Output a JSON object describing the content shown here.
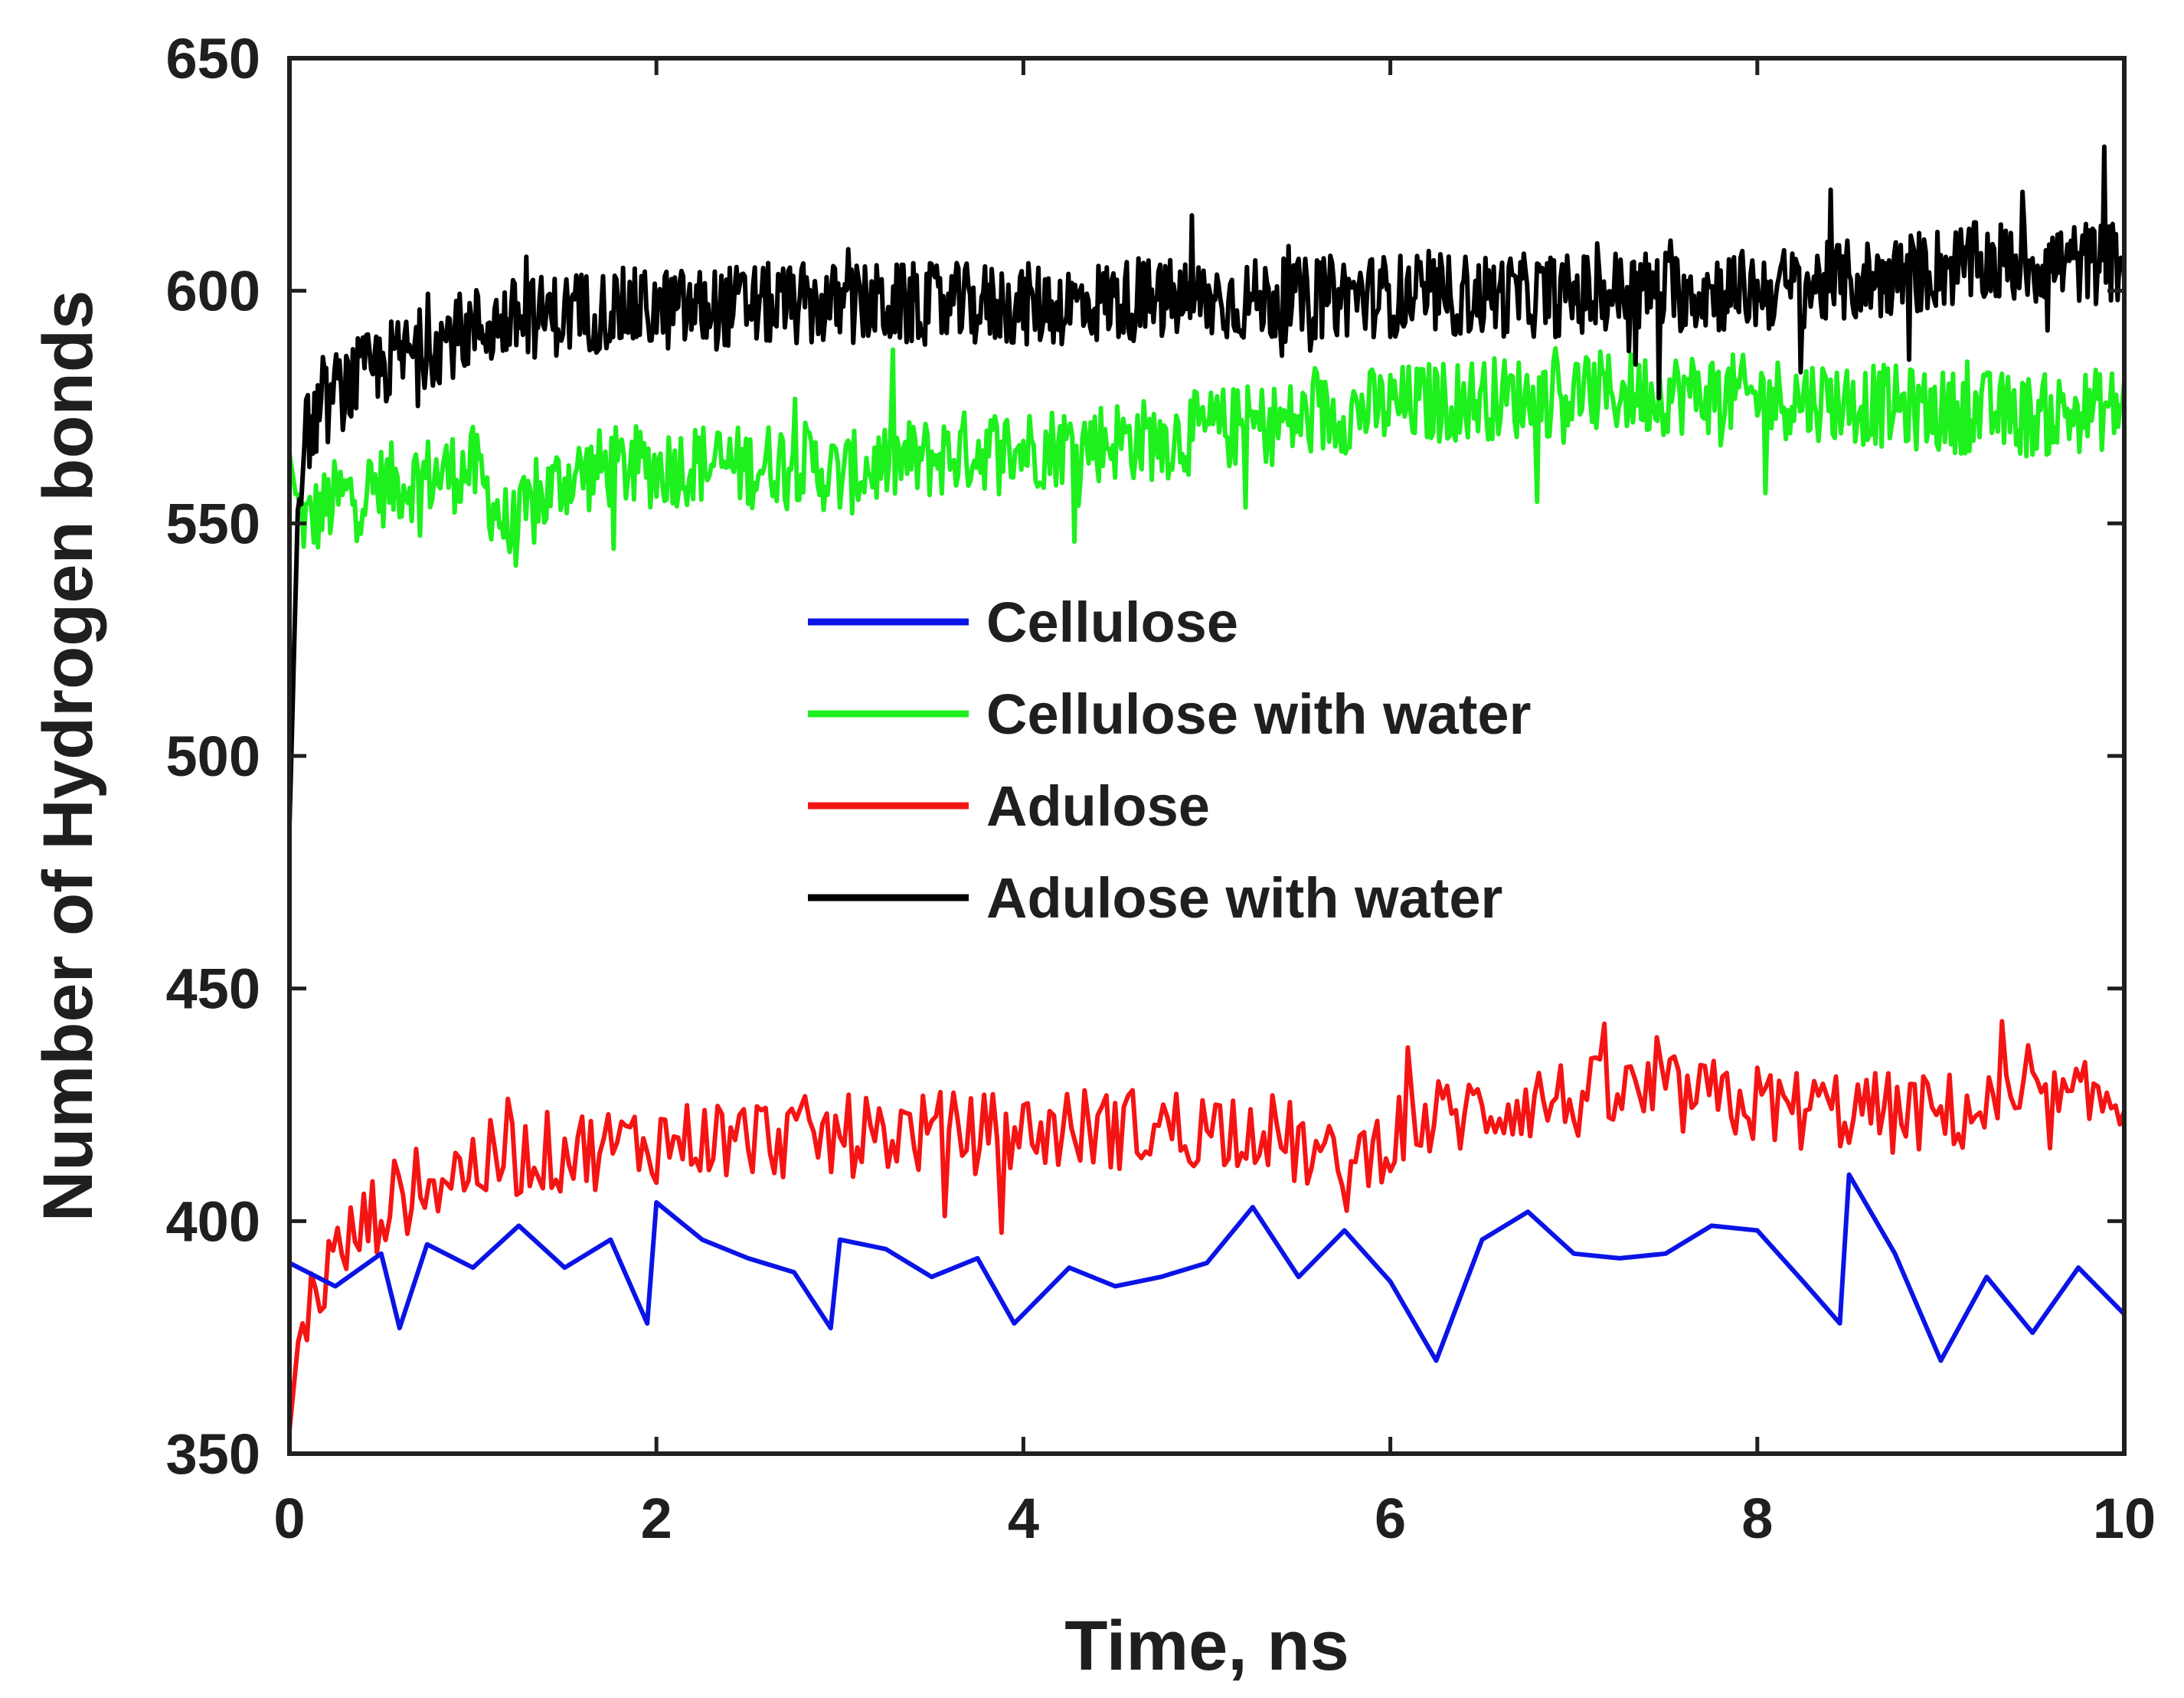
{
  "chart_data": {
    "type": "line",
    "title": "",
    "xlabel": "Time, ns",
    "ylabel": "Number of Hydrogen bonds",
    "xlim": [
      0,
      10
    ],
    "ylim": [
      350,
      650
    ],
    "xticks": [
      "0",
      "2",
      "4",
      "6",
      "8",
      "10"
    ],
    "yticks": [
      "350",
      "400",
      "450",
      "500",
      "550",
      "600",
      "650"
    ],
    "grid": false,
    "legend_placement": "center",
    "series": [
      {
        "name": "Cellulose",
        "color": "#0a14e6",
        "x": [
          0,
          0.25,
          0.5,
          0.6,
          0.75,
          1,
          1.25,
          1.5,
          1.75,
          1.95,
          2,
          2.25,
          2.5,
          2.75,
          2.95,
          3,
          3.25,
          3.5,
          3.75,
          3.95,
          4,
          4.25,
          4.5,
          4.75,
          5,
          5.25,
          5.5,
          5.75,
          6,
          6.25,
          6.5,
          6.75,
          7,
          7.25,
          7.5,
          7.75,
          8,
          8.25,
          8.45,
          8.5,
          8.75,
          9,
          9.25,
          9.5,
          9.75,
          10
        ],
        "y": [
          391,
          386,
          393,
          377,
          395,
          390,
          399,
          390,
          396,
          378,
          404,
          396,
          392,
          389,
          377,
          396,
          394,
          388,
          392,
          378,
          380,
          390,
          386,
          388,
          391,
          403,
          388,
          398,
          387,
          370,
          396,
          402,
          393,
          392,
          393,
          399,
          398,
          387,
          378,
          410,
          393,
          370,
          388,
          376,
          390,
          380
        ]
      },
      {
        "name": "Cellulose with water",
        "color": "#1ef01e",
        "x": [
          0,
          0.05,
          0.1,
          0.25,
          0.5,
          0.75,
          1,
          1.2,
          1.5,
          1.75,
          2,
          2.25,
          2.5,
          2.75,
          3,
          3.25,
          3.5,
          3.75,
          4,
          4.25,
          4.5,
          4.75,
          5,
          5.25,
          5.5,
          5.75,
          6,
          6.25,
          6.5,
          6.75,
          7,
          7.25,
          7.5,
          7.75,
          8,
          8.25,
          8.5,
          8.75,
          9,
          9.25,
          9.5,
          9.75,
          10
        ],
        "y": [
          565,
          552,
          550,
          555,
          558,
          560,
          562,
          548,
          560,
          562,
          562,
          563,
          562,
          564,
          560,
          563,
          564,
          566,
          566,
          567,
          568,
          568,
          570,
          571,
          572,
          574,
          575,
          576,
          577,
          577,
          578,
          578,
          578,
          578,
          577,
          577,
          576,
          575,
          574,
          574,
          573,
          574,
          575
        ]
      },
      {
        "name": "Adulose",
        "color": "#f51414",
        "x": [
          0,
          0.05,
          0.1,
          0.25,
          0.5,
          0.75,
          1,
          1.25,
          1.5,
          1.75,
          2,
          2.25,
          2.5,
          2.75,
          3,
          3.25,
          3.5,
          3.75,
          4,
          4.25,
          4.5,
          4.75,
          5,
          5.25,
          5.5,
          5.75,
          6,
          6.25,
          6.5,
          6.75,
          7,
          7.25,
          7.5,
          7.75,
          8,
          8.25,
          8.5,
          8.75,
          9,
          9.25,
          9.5,
          9.75,
          10
        ],
        "y": [
          355,
          375,
          382,
          392,
          403,
          408,
          412,
          414,
          415,
          416,
          417,
          418,
          418,
          418,
          418,
          419,
          419,
          419,
          419,
          420,
          420,
          420,
          420,
          421,
          416,
          410,
          419,
          422,
          424,
          426,
          426,
          427,
          427,
          426,
          425,
          424,
          424,
          423,
          423,
          424,
          424,
          425,
          427
        ]
      },
      {
        "name": "Adulose with water",
        "color": "#000000",
        "x": [
          0,
          0.05,
          0.1,
          0.25,
          0.5,
          0.75,
          1,
          1.25,
          1.5,
          1.75,
          2,
          2.25,
          2.5,
          2.75,
          3,
          3.25,
          3.5,
          3.75,
          4,
          4.25,
          4.5,
          4.75,
          5,
          5.25,
          5.5,
          5.75,
          6,
          6.25,
          6.5,
          6.75,
          7,
          7.25,
          7.5,
          7.75,
          8,
          8.25,
          8.5,
          8.75,
          9,
          9.25,
          9.5,
          9.75,
          10
        ],
        "y": [
          485,
          560,
          570,
          578,
          584,
          588,
          592,
          594,
          595,
          596,
          596,
          596,
          597,
          597,
          597,
          597,
          597,
          597,
          597,
          597,
          598,
          598,
          598,
          598,
          598,
          599,
          599,
          599,
          599,
          599,
          599,
          600,
          600,
          600,
          600,
          601,
          602,
          603,
          605,
          606,
          606,
          606,
          606
        ]
      }
    ]
  }
}
